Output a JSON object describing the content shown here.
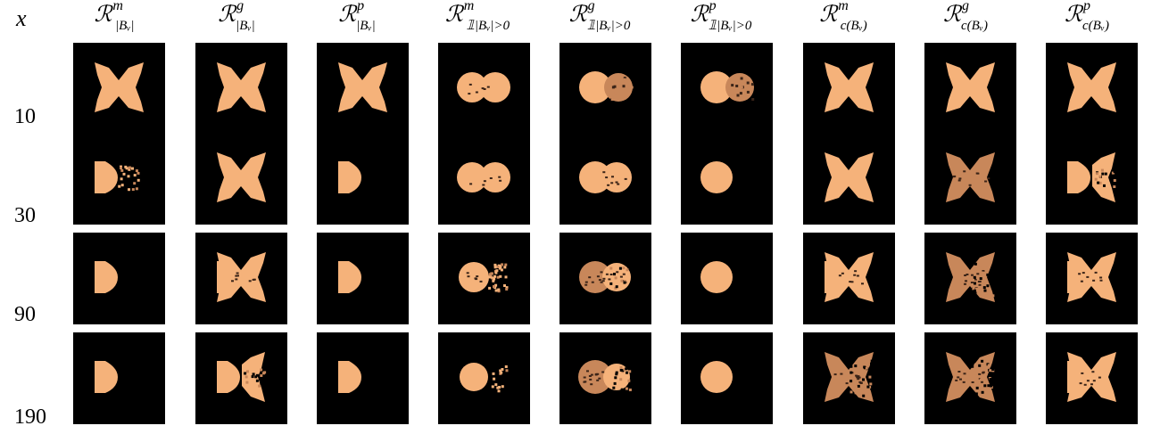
{
  "axis_label": "x",
  "columns": [
    {
      "base": "ℛ",
      "sup": "m",
      "sub": "|B_v|"
    },
    {
      "base": "ℛ",
      "sup": "g",
      "sub": "|B_v|"
    },
    {
      "base": "ℛ",
      "sup": "p",
      "sub": "|B_v|"
    },
    {
      "base": "ℛ",
      "sup": "m",
      "sub": "𝟙_{|B_v|>0}"
    },
    {
      "base": "ℛ",
      "sup": "g",
      "sub": "𝟙_{|B_v|>0}"
    },
    {
      "base": "ℛ",
      "sup": "p",
      "sub": "𝟙_{|B_v|>0}"
    },
    {
      "base": "ℛ",
      "sup": "m",
      "sub": "c(B_v)"
    },
    {
      "base": "ℛ",
      "sup": "g",
      "sub": "c(B_v)"
    },
    {
      "base": "ℛ",
      "sup": "p",
      "sub": "c(B_v)"
    }
  ],
  "rows": [
    "10",
    "30",
    "90",
    "190"
  ],
  "colors": {
    "background": "#000000",
    "fill": "#f5b27a",
    "fill_dark": "#c8875a"
  },
  "shapes": [
    [
      "bowtie",
      "bowtie",
      "bowtie",
      "bowtie-round",
      "circle-plus-faded",
      "circle-plus-faded",
      "bowtie",
      "bowtie",
      "bowtie"
    ],
    [
      "half-scatter",
      "bowtie",
      "half-disc",
      "bowtie-round",
      "double-round",
      "circle",
      "bowtie",
      "bowtie-dark",
      "half-scatter-bowtie"
    ],
    [
      "half-disc",
      "bowtie-scatter",
      "half-disc",
      "round-scatter",
      "double-dark",
      "circle",
      "bowtie-scatter",
      "bowtie-dark-scatter",
      "bowtie-scatter"
    ],
    [
      "half-disc",
      "half-scatter-bowtie",
      "half-disc",
      "round-sparse",
      "double-scatter",
      "circle",
      "bowtie-dark-scatter",
      "bowtie-dark-scatter",
      "bowtie-scatter"
    ]
  ]
}
